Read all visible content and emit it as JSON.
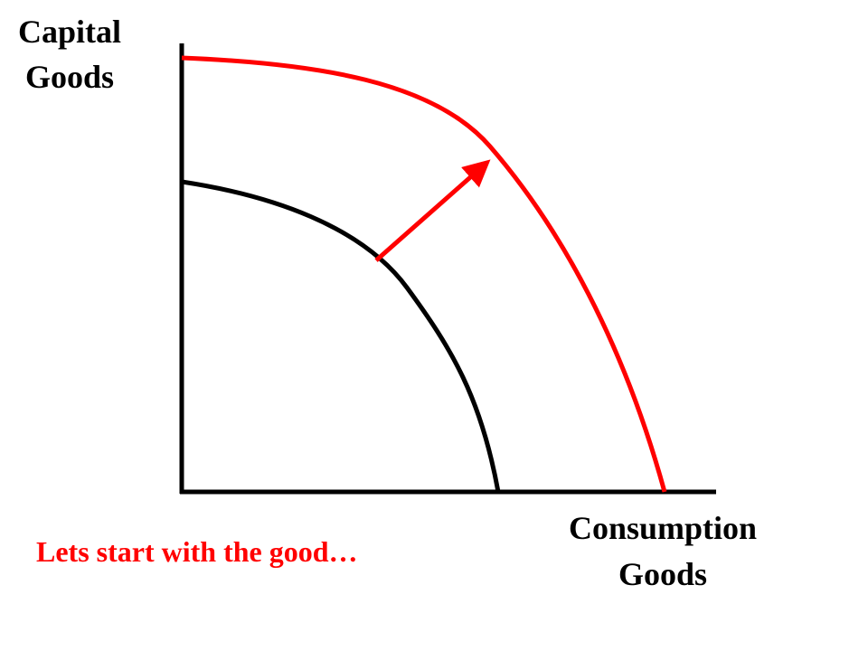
{
  "y_axis_label": [
    "Capital",
    "Goods"
  ],
  "x_axis_label": [
    "Consumption",
    "Goods"
  ],
  "caption": "Lets start with the good…"
}
